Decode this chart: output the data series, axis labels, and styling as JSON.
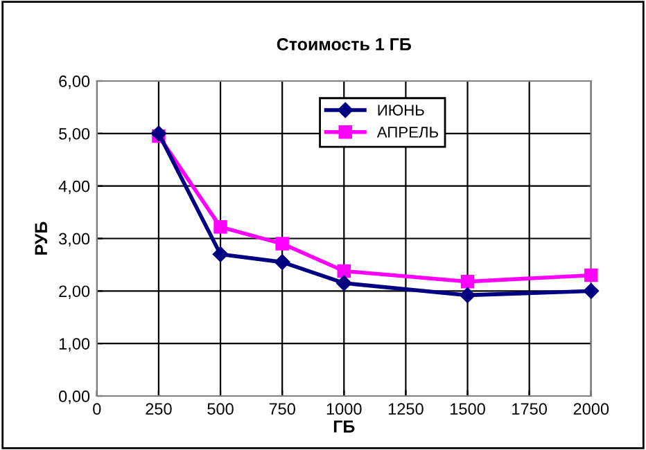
{
  "chart_data": {
    "type": "line",
    "title": "Стоимость 1 ГБ",
    "xlabel": "ГБ",
    "ylabel": "РУБ",
    "x": [
      250,
      500,
      750,
      1000,
      1500,
      2000
    ],
    "series": [
      {
        "name": "ИЮНЬ",
        "color": "#000080",
        "marker": "diamond",
        "values": [
          5.0,
          2.7,
          2.55,
          2.15,
          1.92,
          2.0
        ]
      },
      {
        "name": "АПРЕЛЬ",
        "color": "#ff00ff",
        "marker": "square",
        "values": [
          4.95,
          3.22,
          2.9,
          2.38,
          2.18,
          2.3
        ]
      }
    ],
    "xlim": [
      0,
      2000
    ],
    "xticks": [
      0,
      250,
      500,
      750,
      1000,
      1250,
      1500,
      1750,
      2000
    ],
    "ylim": [
      0,
      6
    ],
    "yticks": [
      {
        "value": 0,
        "label": "0,00"
      },
      {
        "value": 1,
        "label": "1,00"
      },
      {
        "value": 2,
        "label": "2,00"
      },
      {
        "value": 3,
        "label": "3,00"
      },
      {
        "value": 4,
        "label": "4,00"
      },
      {
        "value": 5,
        "label": "5,00"
      },
      {
        "value": 6,
        "label": "6,00"
      }
    ],
    "grid": true,
    "legend": "top right",
    "line_style": "solid"
  }
}
